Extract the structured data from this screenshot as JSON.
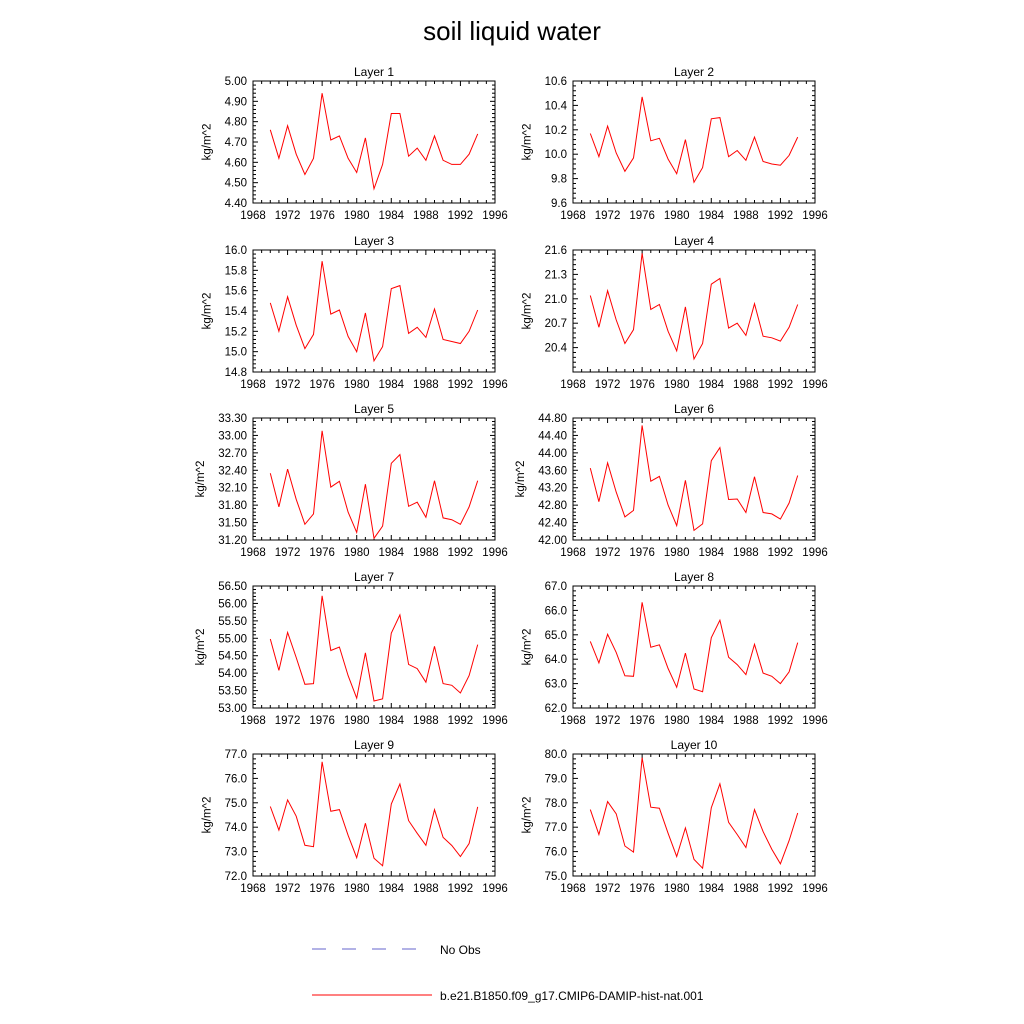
{
  "title": "soil liquid water",
  "legend": {
    "items": [
      {
        "label": "No Obs",
        "color": "#6666cc",
        "style": "dashed"
      },
      {
        "label": "b.e21.B1850.f09_g17.CMIP6-DAMIP-hist-nat.001",
        "color": "#ff0000",
        "style": "solid"
      }
    ]
  },
  "chart_data": [
    {
      "type": "line",
      "title": "Layer 1",
      "xlabel": "",
      "ylabel": "kg/m^2",
      "xlim": [
        1968,
        1996
      ],
      "ylim": [
        4.4,
        5.0
      ],
      "xticks": [
        "1968",
        "1972",
        "1976",
        "1980",
        "1984",
        "1988",
        "1992",
        "1996"
      ],
      "yticks": [
        "4.40",
        "4.50",
        "4.60",
        "4.70",
        "4.80",
        "4.90",
        "5.00"
      ],
      "x": [
        1970,
        1971,
        1972,
        1973,
        1974,
        1975,
        1976,
        1977,
        1978,
        1979,
        1980,
        1981,
        1982,
        1983,
        1984,
        1985,
        1986,
        1987,
        1988,
        1989,
        1990,
        1991,
        1992,
        1993,
        1994
      ],
      "series": [
        {
          "name": "b.e21.B1850.f09_g17.CMIP6-DAMIP-hist-nat.001",
          "color": "#ff0000",
          "values": [
            4.76,
            4.62,
            4.78,
            4.64,
            4.54,
            4.62,
            4.94,
            4.71,
            4.73,
            4.62,
            4.55,
            4.72,
            4.47,
            4.59,
            4.84,
            4.84,
            4.63,
            4.67,
            4.61,
            4.73,
            4.61,
            4.59,
            4.59,
            4.64,
            4.74
          ]
        }
      ]
    },
    {
      "type": "line",
      "title": "Layer 2",
      "xlabel": "",
      "ylabel": "kg/m^2",
      "xlim": [
        1968,
        1996
      ],
      "ylim": [
        9.6,
        10.6
      ],
      "xticks": [
        "1968",
        "1972",
        "1976",
        "1980",
        "1984",
        "1988",
        "1992",
        "1996"
      ],
      "yticks": [
        "9.6",
        "9.8",
        "10.0",
        "10.2",
        "10.4",
        "10.6"
      ],
      "x": [
        1970,
        1971,
        1972,
        1973,
        1974,
        1975,
        1976,
        1977,
        1978,
        1979,
        1980,
        1981,
        1982,
        1983,
        1984,
        1985,
        1986,
        1987,
        1988,
        1989,
        1990,
        1991,
        1992,
        1993,
        1994
      ],
      "series": [
        {
          "name": "b.e21.B1850.f09_g17.CMIP6-DAMIP-hist-nat.001",
          "color": "#ff0000",
          "values": [
            10.17,
            9.98,
            10.23,
            10.01,
            9.86,
            9.97,
            10.47,
            10.11,
            10.13,
            9.96,
            9.84,
            10.12,
            9.77,
            9.89,
            10.29,
            10.3,
            9.98,
            10.03,
            9.95,
            10.14,
            9.94,
            9.92,
            9.91,
            9.99,
            10.14
          ]
        }
      ]
    },
    {
      "type": "line",
      "title": "Layer 3",
      "xlabel": "",
      "ylabel": "kg/m^2",
      "xlim": [
        1968,
        1996
      ],
      "ylim": [
        14.8,
        16.0
      ],
      "xticks": [
        "1968",
        "1972",
        "1976",
        "1980",
        "1984",
        "1988",
        "1992",
        "1996"
      ],
      "yticks": [
        "14.8",
        "15.0",
        "15.2",
        "15.4",
        "15.6",
        "15.8",
        "16.0"
      ],
      "x": [
        1970,
        1971,
        1972,
        1973,
        1974,
        1975,
        1976,
        1977,
        1978,
        1979,
        1980,
        1981,
        1982,
        1983,
        1984,
        1985,
        1986,
        1987,
        1988,
        1989,
        1990,
        1991,
        1992,
        1993,
        1994
      ],
      "series": [
        {
          "name": "b.e21.B1850.f09_g17.CMIP6-DAMIP-hist-nat.001",
          "color": "#ff0000",
          "values": [
            15.48,
            15.2,
            15.54,
            15.26,
            15.03,
            15.17,
            15.89,
            15.37,
            15.41,
            15.15,
            15.0,
            15.38,
            14.91,
            15.05,
            15.62,
            15.65,
            15.18,
            15.24,
            15.14,
            15.42,
            15.12,
            15.1,
            15.08,
            15.2,
            15.41
          ]
        }
      ]
    },
    {
      "type": "line",
      "title": "Layer 4",
      "xlabel": "",
      "ylabel": "kg/m^2",
      "xlim": [
        1968,
        1996
      ],
      "ylim": [
        20.1,
        21.6
      ],
      "xticks": [
        "1968",
        "1972",
        "1976",
        "1980",
        "1984",
        "1988",
        "1992",
        "1996"
      ],
      "yticks": [
        "20.4",
        "20.7",
        "21.0",
        "21.3",
        "21.6"
      ],
      "x": [
        1970,
        1971,
        1972,
        1973,
        1974,
        1975,
        1976,
        1977,
        1978,
        1979,
        1980,
        1981,
        1982,
        1983,
        1984,
        1985,
        1986,
        1987,
        1988,
        1989,
        1990,
        1991,
        1992,
        1993,
        1994
      ],
      "series": [
        {
          "name": "b.e21.B1850.f09_g17.CMIP6-DAMIP-hist-nat.001",
          "color": "#ff0000",
          "values": [
            21.04,
            20.65,
            21.1,
            20.74,
            20.45,
            20.62,
            21.56,
            20.87,
            20.93,
            20.6,
            20.36,
            20.9,
            20.26,
            20.45,
            21.18,
            21.25,
            20.64,
            20.7,
            20.55,
            20.94,
            20.54,
            20.52,
            20.48,
            20.65,
            20.93
          ]
        }
      ]
    },
    {
      "type": "line",
      "title": "Layer 5",
      "xlabel": "",
      "ylabel": "kg/m^2",
      "xlim": [
        1968,
        1996
      ],
      "ylim": [
        31.2,
        33.3
      ],
      "xticks": [
        "1968",
        "1972",
        "1976",
        "1980",
        "1984",
        "1988",
        "1992",
        "1996"
      ],
      "yticks": [
        "31.20",
        "31.50",
        "31.80",
        "32.10",
        "32.40",
        "32.70",
        "33.00",
        "33.30"
      ],
      "x": [
        1970,
        1971,
        1972,
        1973,
        1974,
        1975,
        1976,
        1977,
        1978,
        1979,
        1980,
        1981,
        1982,
        1983,
        1984,
        1985,
        1986,
        1987,
        1988,
        1989,
        1990,
        1991,
        1992,
        1993,
        1994
      ],
      "series": [
        {
          "name": "b.e21.B1850.f09_g17.CMIP6-DAMIP-hist-nat.001",
          "color": "#ff0000",
          "values": [
            32.35,
            31.77,
            32.42,
            31.9,
            31.47,
            31.65,
            33.08,
            32.11,
            32.21,
            31.68,
            31.33,
            32.16,
            31.23,
            31.44,
            32.52,
            32.67,
            31.78,
            31.85,
            31.59,
            32.22,
            31.58,
            31.55,
            31.47,
            31.77,
            32.22
          ]
        }
      ]
    },
    {
      "type": "line",
      "title": "Layer 6",
      "xlabel": "",
      "ylabel": "kg/m^2",
      "xlim": [
        1968,
        1996
      ],
      "ylim": [
        42.0,
        44.8
      ],
      "xticks": [
        "1968",
        "1972",
        "1976",
        "1980",
        "1984",
        "1988",
        "1992",
        "1996"
      ],
      "yticks": [
        "42.00",
        "42.40",
        "42.80",
        "43.20",
        "43.60",
        "44.00",
        "44.40",
        "44.80"
      ],
      "x": [
        1970,
        1971,
        1972,
        1973,
        1974,
        1975,
        1976,
        1977,
        1978,
        1979,
        1980,
        1981,
        1982,
        1983,
        1984,
        1985,
        1986,
        1987,
        1988,
        1989,
        1990,
        1991,
        1992,
        1993,
        1994
      ],
      "series": [
        {
          "name": "b.e21.B1850.f09_g17.CMIP6-DAMIP-hist-nat.001",
          "color": "#ff0000",
          "values": [
            43.65,
            42.88,
            43.77,
            43.1,
            42.53,
            42.68,
            44.63,
            43.35,
            43.46,
            42.8,
            42.33,
            43.37,
            42.22,
            42.37,
            43.82,
            44.12,
            42.93,
            42.94,
            42.63,
            43.45,
            42.63,
            42.6,
            42.48,
            42.85,
            43.48
          ]
        }
      ]
    },
    {
      "type": "line",
      "title": "Layer 7",
      "xlabel": "",
      "ylabel": "kg/m^2",
      "xlim": [
        1968,
        1996
      ],
      "ylim": [
        53.0,
        56.5
      ],
      "xticks": [
        "1968",
        "1972",
        "1976",
        "1980",
        "1984",
        "1988",
        "1992",
        "1996"
      ],
      "yticks": [
        "53.00",
        "53.50",
        "54.00",
        "54.50",
        "55.00",
        "55.50",
        "56.00",
        "56.50"
      ],
      "x": [
        1970,
        1971,
        1972,
        1973,
        1974,
        1975,
        1976,
        1977,
        1978,
        1979,
        1980,
        1981,
        1982,
        1983,
        1984,
        1985,
        1986,
        1987,
        1988,
        1989,
        1990,
        1991,
        1992,
        1993,
        1994
      ],
      "series": [
        {
          "name": "b.e21.B1850.f09_g17.CMIP6-DAMIP-hist-nat.001",
          "color": "#ff0000",
          "values": [
            54.98,
            54.08,
            55.17,
            54.45,
            53.68,
            53.7,
            56.22,
            54.65,
            54.75,
            53.93,
            53.28,
            54.58,
            53.2,
            53.26,
            55.15,
            55.67,
            54.25,
            54.13,
            53.74,
            54.77,
            53.7,
            53.65,
            53.43,
            53.93,
            54.82
          ]
        }
      ]
    },
    {
      "type": "line",
      "title": "Layer 8",
      "xlabel": "",
      "ylabel": "kg/m^2",
      "xlim": [
        1968,
        1996
      ],
      "ylim": [
        62.0,
        67.0
      ],
      "xticks": [
        "1968",
        "1972",
        "1976",
        "1980",
        "1984",
        "1988",
        "1992",
        "1996"
      ],
      "yticks": [
        "62.0",
        "63.0",
        "64.0",
        "65.0",
        "66.0",
        "67.0"
      ],
      "x": [
        1970,
        1971,
        1972,
        1973,
        1974,
        1975,
        1976,
        1977,
        1978,
        1979,
        1980,
        1981,
        1982,
        1983,
        1984,
        1985,
        1986,
        1987,
        1988,
        1989,
        1990,
        1991,
        1992,
        1993,
        1994
      ],
      "series": [
        {
          "name": "b.e21.B1850.f09_g17.CMIP6-DAMIP-hist-nat.001",
          "color": "#ff0000",
          "values": [
            64.73,
            63.85,
            65.02,
            64.28,
            63.32,
            63.3,
            66.33,
            64.49,
            64.59,
            63.62,
            62.85,
            64.25,
            62.78,
            62.67,
            64.88,
            65.6,
            64.08,
            63.78,
            63.37,
            64.61,
            63.43,
            63.3,
            63.0,
            63.48,
            64.68
          ]
        }
      ]
    },
    {
      "type": "line",
      "title": "Layer 9",
      "xlabel": "",
      "ylabel": "kg/m^2",
      "xlim": [
        1968,
        1996
      ],
      "ylim": [
        72.0,
        77.0
      ],
      "xticks": [
        "1968",
        "1972",
        "1976",
        "1980",
        "1984",
        "1988",
        "1992",
        "1996"
      ],
      "yticks": [
        "72.0",
        "73.0",
        "74.0",
        "75.0",
        "76.0",
        "77.0"
      ],
      "x": [
        1970,
        1971,
        1972,
        1973,
        1974,
        1975,
        1976,
        1977,
        1978,
        1979,
        1980,
        1981,
        1982,
        1983,
        1984,
        1985,
        1986,
        1987,
        1988,
        1989,
        1990,
        1991,
        1992,
        1993,
        1994
      ],
      "series": [
        {
          "name": "b.e21.B1850.f09_g17.CMIP6-DAMIP-hist-nat.001",
          "color": "#ff0000",
          "values": [
            74.85,
            73.88,
            75.12,
            74.45,
            73.26,
            73.2,
            76.68,
            74.65,
            74.72,
            73.67,
            72.75,
            74.16,
            72.73,
            72.42,
            74.95,
            75.77,
            74.27,
            73.75,
            73.26,
            74.72,
            73.58,
            73.25,
            72.8,
            73.33,
            74.83
          ]
        }
      ]
    },
    {
      "type": "line",
      "title": "Layer 10",
      "xlabel": "",
      "ylabel": "kg/m^2",
      "xlim": [
        1968,
        1996
      ],
      "ylim": [
        75.0,
        80.0
      ],
      "xticks": [
        "1968",
        "1972",
        "1976",
        "1980",
        "1984",
        "1988",
        "1992",
        "1996"
      ],
      "yticks": [
        "75.0",
        "76.0",
        "77.0",
        "78.0",
        "79.0",
        "80.0"
      ],
      "x": [
        1970,
        1971,
        1972,
        1973,
        1974,
        1975,
        1976,
        1977,
        1978,
        1979,
        1980,
        1981,
        1982,
        1983,
        1984,
        1985,
        1986,
        1987,
        1988,
        1989,
        1990,
        1991,
        1992,
        1993,
        1994
      ],
      "series": [
        {
          "name": "b.e21.B1850.f09_g17.CMIP6-DAMIP-hist-nat.001",
          "color": "#ff0000",
          "values": [
            77.72,
            76.7,
            78.05,
            77.55,
            76.23,
            75.98,
            79.85,
            77.82,
            77.78,
            76.75,
            75.8,
            76.97,
            75.68,
            75.32,
            77.8,
            78.78,
            77.2,
            76.7,
            76.17,
            77.72,
            76.82,
            76.1,
            75.5,
            76.45,
            77.58
          ]
        }
      ]
    }
  ]
}
